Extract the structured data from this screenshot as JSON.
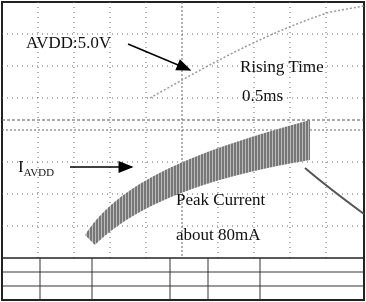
{
  "annotations": {
    "voltage_label": "AVDD:5.0V",
    "rise_title": "Rising Time",
    "rise_value": "0.5ms",
    "current_label": "I",
    "current_subscript": "AVDD",
    "peak_title": "Peak Current",
    "peak_value": "about 80mA"
  }
}
